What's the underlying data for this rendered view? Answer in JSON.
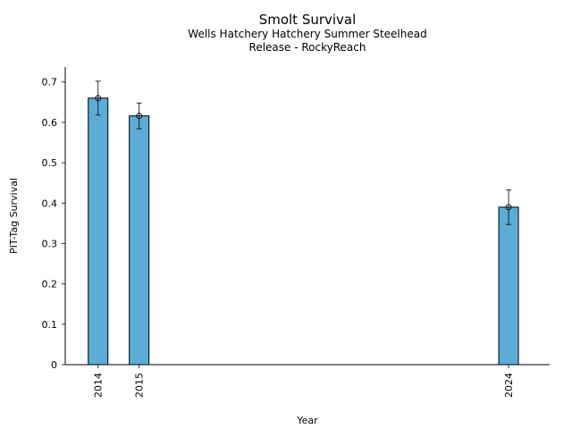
{
  "chart_data": {
    "type": "bar",
    "title": "Smolt Survival",
    "subtitle_lines": [
      "Wells Hatchery Hatchery Summer Steelhead",
      "Release - RockyReach"
    ],
    "xlabel": "Year",
    "ylabel": "PIT-Tag Survival",
    "x": [
      2014,
      2015,
      2024
    ],
    "values": [
      0.66,
      0.616,
      0.39
    ],
    "error_low": [
      0.618,
      0.584,
      0.347
    ],
    "error_high": [
      0.702,
      0.648,
      0.433
    ],
    "ylim": [
      0,
      0.737
    ],
    "yticks": [
      "0",
      "0.1",
      "0.2",
      "0.3",
      "0.4",
      "0.5",
      "0.6",
      "0.7"
    ],
    "xlim": [
      2013.2,
      2025
    ],
    "grid": false,
    "bar_color": "#5bacd6",
    "bar_edge_color": "#000000"
  }
}
